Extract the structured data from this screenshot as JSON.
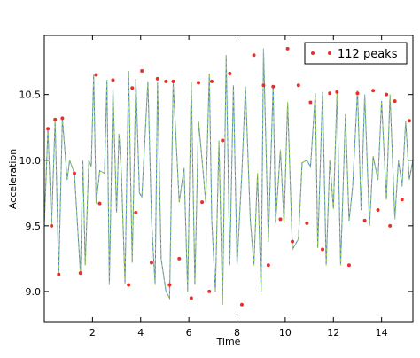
{
  "chart_data": {
    "type": "line",
    "title": "",
    "xlabel": "Time",
    "ylabel": "Acceleration",
    "xlim": [
      0.0,
      15.3
    ],
    "ylim": [
      8.77,
      10.95
    ],
    "xticks": [
      2,
      4,
      6,
      8,
      10,
      12,
      14
    ],
    "yticks": [
      9.0,
      9.5,
      10.0,
      10.5
    ],
    "xtick_labels": [
      "2",
      "4",
      "6",
      "8",
      "10",
      "12",
      "14"
    ],
    "ytick_labels": [
      "9.0",
      "9.5",
      "10.0",
      "10.5"
    ],
    "grid": false,
    "legend_position": "top-right",
    "line_color": "#4a86c8",
    "dash_color": "#a6c948",
    "marker_color": "#e8302a",
    "series": [
      {
        "type": "line",
        "x": [
          0.0,
          0.15,
          0.3,
          0.45,
          0.6,
          0.75,
          0.95,
          1.05,
          1.25,
          1.5,
          1.6,
          1.7,
          1.85,
          1.95,
          2.05,
          2.15,
          2.3,
          2.5,
          2.6,
          2.7,
          2.85,
          3.0,
          3.1,
          3.2,
          3.35,
          3.5,
          3.65,
          3.8,
          3.95,
          4.05,
          4.3,
          4.45,
          4.6,
          4.7,
          4.85,
          5.05,
          5.2,
          5.35,
          5.6,
          5.8,
          5.95,
          6.1,
          6.25,
          6.4,
          6.55,
          6.7,
          6.85,
          6.95,
          7.1,
          7.25,
          7.4,
          7.55,
          7.7,
          7.85,
          8.0,
          8.2,
          8.35,
          8.55,
          8.7,
          8.85,
          9.0,
          9.1,
          9.3,
          9.5,
          9.6,
          9.8,
          9.95,
          10.1,
          10.3,
          10.55,
          10.7,
          10.9,
          11.05,
          11.25,
          11.35,
          11.55,
          11.7,
          11.85,
          12.0,
          12.15,
          12.3,
          12.5,
          12.65,
          12.8,
          13.0,
          13.15,
          13.3,
          13.5,
          13.65,
          13.85,
          14.0,
          14.2,
          14.35,
          14.55,
          14.7,
          14.85,
          15.0,
          15.15,
          15.3
        ],
        "y": [
          9.5,
          10.24,
          9.5,
          10.31,
          9.13,
          10.32,
          9.85,
          10.0,
          9.9,
          9.14,
          10.0,
          9.2,
          10.0,
          9.95,
          10.65,
          9.67,
          9.92,
          9.9,
          10.61,
          9.05,
          10.55,
          9.6,
          10.2,
          9.9,
          9.06,
          10.68,
          9.22,
          10.62,
          9.75,
          9.72,
          10.6,
          9.55,
          9.05,
          10.6,
          9.25,
          9.0,
          8.95,
          10.59,
          9.68,
          9.94,
          9.0,
          10.6,
          9.05,
          10.3,
          10.0,
          9.68,
          10.66,
          9.55,
          9.0,
          10.15,
          8.9,
          10.8,
          9.2,
          10.57,
          9.2,
          9.9,
          10.56,
          9.55,
          9.2,
          9.9,
          9.0,
          10.85,
          9.38,
          10.57,
          9.52,
          10.08,
          9.52,
          10.44,
          9.32,
          9.4,
          9.98,
          10.0,
          9.95,
          10.51,
          9.33,
          10.52,
          9.2,
          10.0,
          9.63,
          10.51,
          9.2,
          10.35,
          9.54,
          9.8,
          10.53,
          9.62,
          10.5,
          9.5,
          10.03,
          9.85,
          10.45,
          9.7,
          10.5,
          9.55,
          10.0,
          9.8,
          10.3,
          9.85,
          10.0
        ]
      },
      {
        "type": "scatter",
        "name": "112 peaks",
        "x": [
          0.15,
          0.3,
          0.45,
          0.6,
          0.75,
          1.25,
          1.5,
          2.15,
          2.3,
          2.85,
          3.5,
          3.65,
          3.8,
          4.05,
          4.45,
          4.7,
          5.05,
          5.2,
          5.35,
          5.6,
          6.1,
          6.4,
          6.55,
          6.85,
          6.95,
          7.4,
          7.7,
          8.2,
          8.7,
          9.1,
          9.3,
          9.5,
          9.8,
          10.1,
          10.3,
          10.55,
          10.9,
          11.05,
          11.55,
          11.85,
          12.15,
          12.65,
          13.0,
          13.3,
          13.65,
          13.85,
          14.2,
          14.35,
          14.55,
          14.85,
          15.15
        ],
        "y": [
          10.24,
          9.5,
          10.31,
          9.13,
          10.32,
          9.9,
          9.14,
          10.65,
          9.67,
          10.61,
          9.05,
          10.55,
          9.6,
          10.68,
          9.22,
          10.62,
          10.6,
          9.05,
          10.6,
          9.25,
          8.95,
          10.59,
          9.68,
          9.0,
          10.6,
          10.15,
          10.66,
          8.9,
          10.8,
          10.57,
          9.2,
          10.56,
          9.55,
          10.85,
          9.38,
          10.57,
          9.52,
          10.44,
          9.32,
          10.51,
          10.52,
          9.2,
          10.51,
          9.54,
          10.53,
          9.62,
          10.5,
          9.5,
          10.45,
          9.7,
          10.3
        ]
      }
    ]
  }
}
